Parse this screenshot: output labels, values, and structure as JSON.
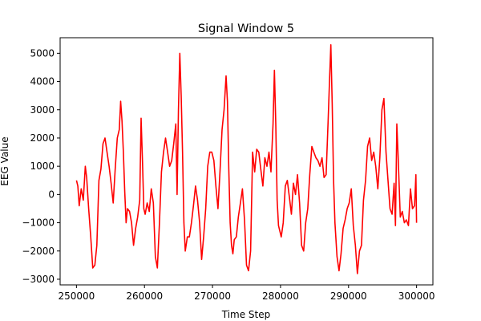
{
  "chart_data": {
    "type": "line",
    "title": "Signal Window 5",
    "xlabel": "Time Step",
    "ylabel": "EEG Value",
    "xlim": [
      247600,
      302400
    ],
    "ylim": [
      -3200,
      5550
    ],
    "xticks": [
      250000,
      260000,
      270000,
      280000,
      290000,
      300000
    ],
    "yticks": [
      -3000,
      -2000,
      -1000,
      0,
      1000,
      2000,
      3000,
      4000,
      5000
    ],
    "grid": false,
    "legend": "none",
    "series": [
      {
        "color": "#ff0000",
        "x": [
          250000,
          250200,
          250400,
          250700,
          251000,
          251300,
          251500,
          251800,
          252100,
          252400,
          252700,
          253000,
          253300,
          253600,
          253900,
          254200,
          254500,
          254800,
          255100,
          255400,
          255700,
          256000,
          256300,
          256500,
          256700,
          256900,
          257100,
          257300,
          257500,
          257800,
          258100,
          258400,
          258700,
          259000,
          259300,
          259500,
          259700,
          259900,
          260100,
          260400,
          260700,
          261000,
          261300,
          261600,
          261900,
          262200,
          262500,
          262800,
          263100,
          263400,
          263700,
          264000,
          264300,
          264600,
          264800,
          265000,
          265200,
          265400,
          265600,
          265800,
          266000,
          266300,
          266600,
          266900,
          267200,
          267500,
          267800,
          268100,
          268400,
          268700,
          269000,
          269300,
          269600,
          269900,
          270200,
          270500,
          270800,
          271100,
          271400,
          271700,
          272000,
          272200,
          272400,
          272600,
          272800,
          273000,
          273200,
          273500,
          273800,
          274100,
          274400,
          274700,
          275000,
          275300,
          275600,
          275900,
          276200,
          276500,
          276800,
          277100,
          277400,
          277700,
          278000,
          278300,
          278600,
          278900,
          279100,
          279300,
          279500,
          279700,
          279900,
          280100,
          280400,
          280700,
          281000,
          281300,
          281600,
          281900,
          282200,
          282500,
          282800,
          283100,
          283400,
          283700,
          284000,
          284300,
          284600,
          284900,
          285200,
          285500,
          285800,
          286100,
          286400,
          286700,
          287000,
          287200,
          287400,
          287600,
          287800,
          288000,
          288300,
          288600,
          288900,
          289200,
          289500,
          289800,
          290100,
          290400,
          290700,
          291000,
          291300,
          291600,
          291900,
          292200,
          292500,
          292800,
          293100,
          293400,
          293700,
          294000,
          294300,
          294600,
          294900,
          295200,
          295500,
          295800,
          296100,
          296400,
          296700,
          296900,
          297100,
          297300,
          297600,
          297900,
          298200,
          298500,
          298800,
          299100,
          299400,
          299700,
          299900,
          300000
        ],
        "y": [
          500,
          300,
          -400,
          200,
          -200,
          1000,
          600,
          -500,
          -1500,
          -2600,
          -2500,
          -1800,
          500,
          900,
          1800,
          2000,
          1500,
          1000,
          400,
          -300,
          900,
          2000,
          2300,
          3300,
          2600,
          1500,
          100,
          -1000,
          -500,
          -600,
          -1000,
          -1800,
          -1200,
          -800,
          -200,
          2700,
          1200,
          -500,
          -700,
          -300,
          -600,
          200,
          -300,
          -2200,
          -2600,
          -1000,
          800,
          1500,
          2000,
          1500,
          1000,
          1200,
          1800,
          2500,
          0,
          3000,
          5000,
          3500,
          1500,
          -1000,
          -2000,
          -1500,
          -1500,
          -1000,
          -400,
          300,
          -200,
          -1000,
          -2300,
          -1500,
          -500,
          1000,
          1500,
          1500,
          1200,
          300,
          -500,
          800,
          2300,
          3000,
          4200,
          3300,
          900,
          -1000,
          -1800,
          -2100,
          -1600,
          -1500,
          -800,
          -300,
          200,
          -900,
          -2500,
          -2700,
          -2000,
          1500,
          800,
          1600,
          1500,
          900,
          300,
          1300,
          1000,
          1500,
          800,
          2500,
          4400,
          2500,
          -200,
          -1100,
          -1300,
          -1500,
          -1000,
          300,
          500,
          -100,
          -700,
          400,
          0,
          700,
          -300,
          -1800,
          -2000,
          -1000,
          -500,
          700,
          1700,
          1500,
          1300,
          1200,
          1000,
          1300,
          600,
          700,
          2600,
          4000,
          5300,
          3200,
          500,
          -1000,
          -2200,
          -2700,
          -2100,
          -1200,
          -900,
          -500,
          -300,
          200,
          -1100,
          -1800,
          -2800,
          -2000,
          -1800,
          -200,
          500,
          1700,
          2000,
          1200,
          1500,
          1000,
          200,
          1300,
          3000,
          3400,
          1500,
          500,
          -500,
          -700,
          400,
          -1100,
          2500,
          1300,
          -800,
          -600,
          -1000,
          -900,
          -1100,
          200,
          -500,
          -400,
          700,
          -1000
        ]
      }
    ]
  }
}
